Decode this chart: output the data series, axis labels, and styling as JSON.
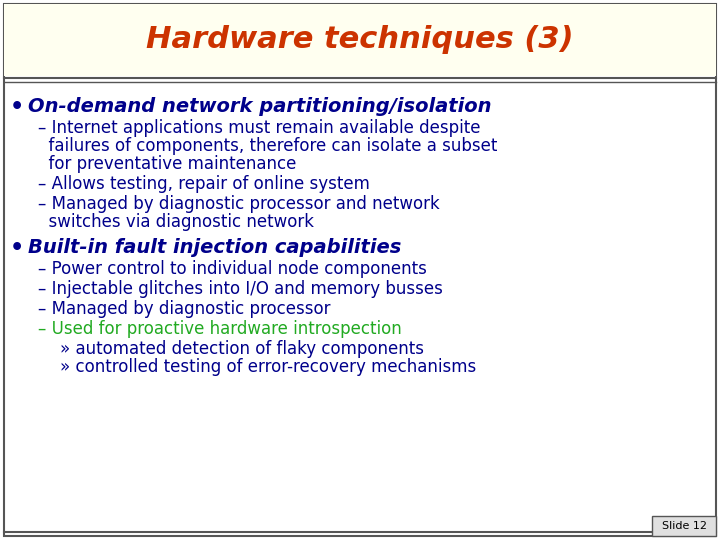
{
  "title": "Hardware techniques (3)",
  "title_color": "#CC3300",
  "title_fontsize": 22,
  "background_color": "#FFFFFF",
  "border_color": "#555555",
  "slide_number": "Slide 12",
  "content": [
    {
      "type": "bullet",
      "text": "On-demand network partitioning/isolation",
      "color": "#00008B",
      "fontsize": 14,
      "bold": true
    },
    {
      "type": "sub",
      "lines": [
        "– Internet applications must remain available despite",
        "  failures of components, therefore can isolate a subset",
        "  for preventative maintenance"
      ],
      "color": "#00008B",
      "fontsize": 12,
      "bold": false
    },
    {
      "type": "sub",
      "lines": [
        "– Allows testing, repair of online system"
      ],
      "color": "#00008B",
      "fontsize": 12,
      "bold": false
    },
    {
      "type": "sub",
      "lines": [
        "– Managed by diagnostic processor and network",
        "  switches via diagnostic network"
      ],
      "color": "#00008B",
      "fontsize": 12,
      "bold": false
    },
    {
      "type": "bullet",
      "text": "Built-in fault injection capabilities",
      "color": "#00008B",
      "fontsize": 14,
      "bold": true
    },
    {
      "type": "sub",
      "lines": [
        "– Power control to individual node components"
      ],
      "color": "#00008B",
      "fontsize": 12,
      "bold": false
    },
    {
      "type": "sub",
      "lines": [
        "– Injectable glitches into I/O and memory busses"
      ],
      "color": "#00008B",
      "fontsize": 12,
      "bold": false
    },
    {
      "type": "sub",
      "lines": [
        "– Managed by diagnostic processor"
      ],
      "color": "#00008B",
      "fontsize": 12,
      "bold": false
    },
    {
      "type": "sub",
      "lines": [
        "– Used for proactive hardware introspection"
      ],
      "color": "#22AA22",
      "fontsize": 12,
      "bold": false
    },
    {
      "type": "sub2",
      "lines": [
        "» automated detection of flaky components"
      ],
      "color": "#00008B",
      "fontsize": 12,
      "bold": false
    },
    {
      "type": "sub2",
      "lines": [
        "» controlled testing of error-recovery mechanisms"
      ],
      "color": "#00008B",
      "fontsize": 12,
      "bold": false
    }
  ]
}
